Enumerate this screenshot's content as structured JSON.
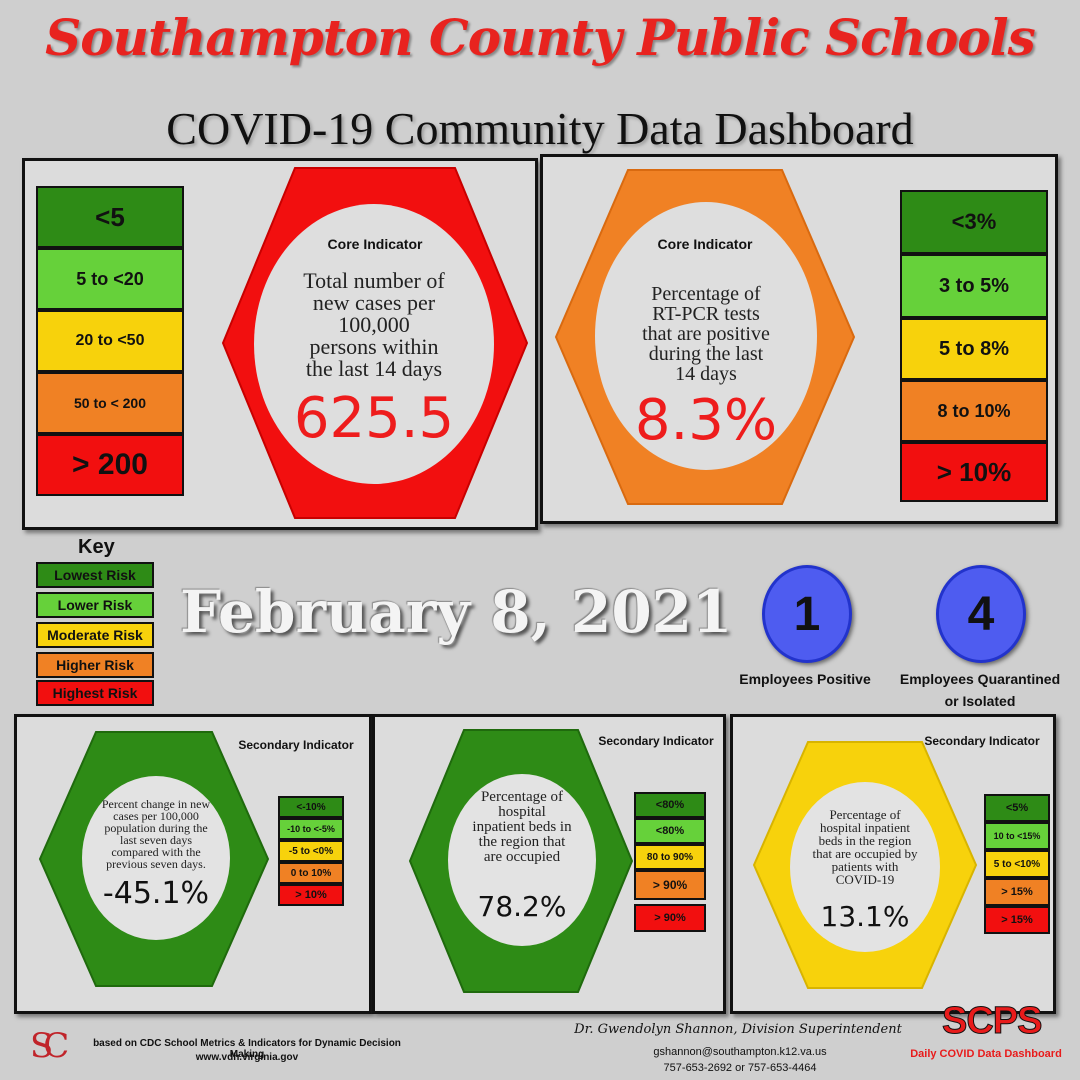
{
  "header": {
    "title": "Southampton County Public Schools",
    "subtitle": "COVID-19 Community Data Dashboard"
  },
  "core1": {
    "label": "Core Indicator",
    "text": [
      "Total number of",
      "new cases per",
      "100,000",
      "persons within",
      "the last 14 days"
    ],
    "value": "625.5",
    "scale": [
      "<5",
      "5 to  <20",
      "20 to <50",
      "50 to < 200",
      "> 200"
    ]
  },
  "core2": {
    "label": "Core Indicator",
    "text": [
      "Percentage of",
      "RT-PCR tests",
      "that are positive",
      "during the last",
      "14 days"
    ],
    "value": "8.3%",
    "scale": [
      "<3%",
      "3 to 5%",
      "5 to 8%",
      "8 to 10%",
      "> 10%"
    ]
  },
  "key": {
    "title": "Key",
    "items": [
      "Lowest Risk",
      "Lower Risk",
      "Moderate Risk",
      "Higher Risk",
      "Highest Risk"
    ]
  },
  "date": "February 8, 2021",
  "employees": {
    "positive_count": "1",
    "positive_label": "Employees Positive",
    "quarantined_count": "4",
    "quarantined_label": [
      "Employees Quarantined",
      "or Isolated"
    ]
  },
  "sec1": {
    "label": "Secondary Indicator",
    "text": [
      "Percent change in new",
      "cases per 100,000",
      "population during the",
      "last seven days",
      "compared with the",
      "previous seven days."
    ],
    "value": "-45.1%",
    "scale": [
      "<-10%",
      "-10 to <-5%",
      "-5 to <0%",
      "0 to 10%",
      "> 10%"
    ]
  },
  "sec2": {
    "label": "Secondary Indicator",
    "text": [
      "Percentage of",
      "hospital",
      "inpatient beds in",
      "the region that",
      "are occupied"
    ],
    "value": "78.2%",
    "scale": [
      "<80%",
      "<80%",
      "80 to 90%",
      "> 90%",
      "> 90%"
    ]
  },
  "sec3": {
    "label": "Secondary Indicator",
    "text": [
      "Percentage of",
      "hospital inpatient",
      "beds in the region",
      "that are occupied by",
      "patients with",
      "COVID-19"
    ],
    "value": "13.1%",
    "scale": [
      "<5%",
      "10 to <15%",
      "5 to <10%",
      "> 15%",
      "> 15%"
    ]
  },
  "footer": {
    "logo": "SC",
    "source_line1": "based on CDC School Metrics & Indicators for Dynamic Decision Making",
    "source_line2": "www.vdh.virginia.gov",
    "superintendent": "Dr. Gwendolyn Shannon, Division Superintendent",
    "email": "gshannon@southampton.k12.va.us",
    "phone": "757-653-2692 or 757-653-4464",
    "brand": "SCPS",
    "brand_sub": "Daily COVID Data Dashboard"
  },
  "colors": {
    "dark_green": "#2e8b16",
    "light_green": "#66d13a",
    "yellow": "#f7d20c",
    "orange": "#f08124",
    "red": "#f20f0f",
    "title_red": "#e8231f",
    "employee_blue": "#4e5cf0"
  }
}
